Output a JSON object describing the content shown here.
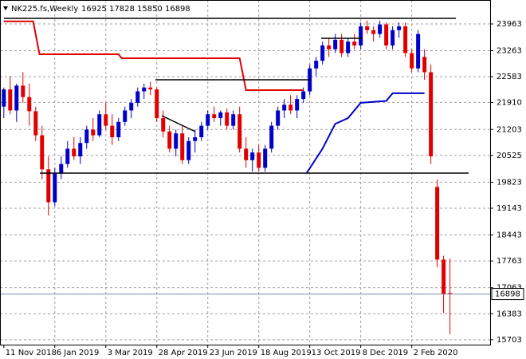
{
  "chart_data": {
    "type": "candlestick",
    "title": "NK225.fs,Weekly",
    "subtitle": "16925 17828 15850 16898",
    "up_color": "#0000c8",
    "down_color": "#e00000",
    "grid": true,
    "ylim": [
      15575,
      24589
    ],
    "yticks": [
      23963,
      23263,
      22583,
      21910,
      21203,
      20525,
      19823,
      19143,
      18443,
      17763,
      17063,
      16383,
      15703
    ],
    "xlim": [
      -0.6,
      76.3
    ],
    "xticks": [
      {
        "value": 0,
        "label": "11 Nov 2018"
      },
      {
        "value": 8,
        "label": "6 Jan 2019"
      },
      {
        "value": 16,
        "label": "3 Mar 2019"
      },
      {
        "value": 24,
        "label": "28 Apr 2019"
      },
      {
        "value": 32,
        "label": "23 Jun 2019"
      },
      {
        "value": 40,
        "label": "18 Aug 2019"
      },
      {
        "value": 48,
        "label": "13 Oct 2019"
      },
      {
        "value": 56,
        "label": "8 Dec 2019"
      },
      {
        "value": 64,
        "label": "2 Feb 2020"
      }
    ],
    "last_price": 16898,
    "ohlc": [
      [
        21800,
        22300,
        21500,
        22250
      ],
      [
        22250,
        22600,
        21600,
        21700
      ],
      [
        21700,
        22400,
        21400,
        22350
      ],
      [
        22350,
        22700,
        21900,
        22050
      ],
      [
        22050,
        22400,
        21300,
        21680
      ],
      [
        21680,
        21800,
        20900,
        21050
      ],
      [
        21050,
        21300,
        19900,
        20160
      ],
      [
        20160,
        20500,
        18950,
        19300
      ],
      [
        19300,
        20200,
        19200,
        20050
      ],
      [
        20050,
        20500,
        19900,
        20300
      ],
      [
        20300,
        20900,
        20200,
        20700
      ],
      [
        20700,
        21000,
        20400,
        20500
      ],
      [
        20500,
        21000,
        20300,
        20850
      ],
      [
        20850,
        21300,
        20700,
        21200
      ],
      [
        21200,
        21500,
        20900,
        21050
      ],
      [
        21050,
        21700,
        21000,
        21600
      ],
      [
        21600,
        21900,
        21200,
        21300
      ],
      [
        21300,
        21600,
        20800,
        21000
      ],
      [
        21000,
        21500,
        20900,
        21400
      ],
      [
        21400,
        21800,
        21300,
        21700
      ],
      [
        21700,
        22000,
        21500,
        21900
      ],
      [
        21900,
        22300,
        21800,
        22200
      ],
      [
        22200,
        22400,
        22000,
        22300
      ],
      [
        22300,
        22450,
        22100,
        22250
      ],
      [
        22250,
        22300,
        21400,
        21500
      ],
      [
        21500,
        21700,
        21000,
        21150
      ],
      [
        21150,
        21300,
        20600,
        20700
      ],
      [
        20700,
        21200,
        20500,
        21100
      ],
      [
        21100,
        21300,
        20300,
        20400
      ],
      [
        20400,
        21000,
        20300,
        20900
      ],
      [
        20900,
        21200,
        20600,
        21000
      ],
      [
        21000,
        21400,
        20900,
        21300
      ],
      [
        21300,
        21700,
        21200,
        21600
      ],
      [
        21600,
        21800,
        21400,
        21500
      ],
      [
        21500,
        21700,
        21300,
        21650
      ],
      [
        21650,
        21750,
        21200,
        21300
      ],
      [
        21300,
        21700,
        21200,
        21600
      ],
      [
        21600,
        21800,
        20600,
        20700
      ],
      [
        20700,
        21000,
        20200,
        20400
      ],
      [
        20400,
        20700,
        20100,
        20600
      ],
      [
        20600,
        20800,
        20100,
        20200
      ],
      [
        20200,
        20800,
        20100,
        20700
      ],
      [
        20700,
        21400,
        20600,
        21300
      ],
      [
        21300,
        21800,
        21200,
        21700
      ],
      [
        21700,
        22000,
        21500,
        21850
      ],
      [
        21850,
        22100,
        21600,
        21700
      ],
      [
        21700,
        22100,
        21500,
        22000
      ],
      [
        22000,
        22300,
        21900,
        22200
      ],
      [
        22200,
        22900,
        22100,
        22800
      ],
      [
        22800,
        23100,
        22600,
        23000
      ],
      [
        23000,
        23500,
        22900,
        23400
      ],
      [
        23400,
        23600,
        23100,
        23300
      ],
      [
        23300,
        23700,
        23200,
        23550
      ],
      [
        23550,
        23700,
        23100,
        23200
      ],
      [
        23200,
        23600,
        23100,
        23500
      ],
      [
        23500,
        23700,
        23300,
        23400
      ],
      [
        23400,
        24000,
        23300,
        23900
      ],
      [
        23900,
        24050,
        23700,
        23800
      ],
      [
        23800,
        23900,
        23500,
        23700
      ],
      [
        23700,
        24050,
        23600,
        23950
      ],
      [
        23950,
        24000,
        23300,
        23400
      ],
      [
        23400,
        23900,
        23300,
        23800
      ],
      [
        23800,
        24000,
        23600,
        23900
      ],
      [
        23900,
        24000,
        23100,
        23200
      ],
      [
        23200,
        23300,
        22700,
        22800
      ],
      [
        22800,
        23800,
        22700,
        23700
      ],
      [
        23100,
        23300,
        22500,
        22700
      ],
      [
        22700,
        22900,
        20300,
        20500
      ],
      [
        19700,
        19900,
        17600,
        17800
      ],
      [
        17800,
        17900,
        16400,
        16900
      ],
      [
        16925,
        17828,
        15850,
        16898
      ]
    ],
    "series": [
      {
        "color": "#e00000",
        "x": [
          0,
          4.6,
          5.6,
          18,
          18.5,
          37,
          38,
          47
        ],
        "values": [
          24030,
          24030,
          23170,
          23170,
          23065,
          23065,
          22230,
          22230
        ]
      },
      {
        "color": "#0000c8",
        "x": [
          47.5,
          50,
          52,
          54,
          56,
          60,
          61,
          66
        ],
        "values": [
          20060,
          20700,
          21350,
          21500,
          21900,
          21950,
          22150,
          22150
        ]
      }
    ]
  }
}
